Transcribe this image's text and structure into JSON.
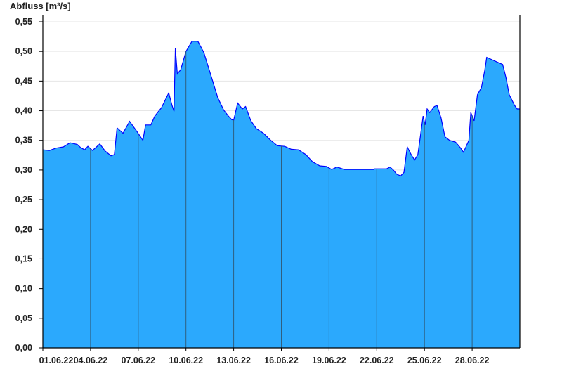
{
  "chart_data": {
    "type": "area",
    "title": "",
    "ylabel": "Abfluss [m³/s]",
    "xlabel": "",
    "xlim": [
      "2022-06-01T00:00",
      "2022-07-01T00:00"
    ],
    "ylim": [
      0,
      0.56
    ],
    "yticks": [
      "0,00",
      "0,05",
      "0,10",
      "0,15",
      "0,20",
      "0,25",
      "0,30",
      "0,35",
      "0,40",
      "0,45",
      "0,50",
      "0,55"
    ],
    "ytick_values": [
      0,
      0.05,
      0.1,
      0.15,
      0.2,
      0.25,
      0.3,
      0.35,
      0.4,
      0.45,
      0.5,
      0.55
    ],
    "xticks": [
      "01.06.22",
      "04.06.22",
      "07.06.22",
      "10.06.22",
      "13.06.22",
      "16.06.22",
      "19.06.22",
      "22.06.22",
      "25.06.22",
      "28.06.22"
    ],
    "xtick_values": [
      "2022-06-01T00:00",
      "2022-06-04T00:00",
      "2022-06-07T00:00",
      "2022-06-10T00:00",
      "2022-06-13T00:00",
      "2022-06-16T00:00",
      "2022-06-19T00:00",
      "2022-06-22T00:00",
      "2022-06-25T00:00",
      "2022-06-28T00:00"
    ],
    "grid": "horizontal",
    "legend": "none",
    "fill_color": "#2ba9fd",
    "line_color": "#0000ff",
    "separator_color": "#2f5f7f",
    "x": [
      "2022-06-01T00:00",
      "2022-06-01T10:00",
      "2022-06-01T20:00",
      "2022-06-02T07:00",
      "2022-06-02T17:00",
      "2022-06-03T04:00",
      "2022-06-03T09:00",
      "2022-06-03T15:00",
      "2022-06-03T20:00",
      "2022-06-04T03:00",
      "2022-06-04T14:00",
      "2022-06-04T22:00",
      "2022-06-05T07:00",
      "2022-06-05T12:00",
      "2022-06-05T16:00",
      "2022-06-06T01:00",
      "2022-06-06T11:00",
      "2022-06-06T22:00",
      "2022-06-07T07:00",
      "2022-06-07T11:00",
      "2022-06-07T19:00",
      "2022-06-08T01:00",
      "2022-06-08T11:00",
      "2022-06-08T22:00",
      "2022-06-09T03:00",
      "2022-06-09T06:00",
      "2022-06-09T08:00",
      "2022-06-09T11:00",
      "2022-06-09T16:00",
      "2022-06-10T00:00",
      "2022-06-10T09:00",
      "2022-06-10T18:00",
      "2022-06-11T03:00",
      "2022-06-11T13:00",
      "2022-06-12T00:00",
      "2022-06-12T09:00",
      "2022-06-12T16:00",
      "2022-06-12T21:00",
      "2022-06-13T00:00",
      "2022-06-13T06:00",
      "2022-06-13T13:00",
      "2022-06-13T18:00",
      "2022-06-14T02:00",
      "2022-06-14T10:00",
      "2022-06-14T21:00",
      "2022-06-15T08:00",
      "2022-06-15T18:00",
      "2022-06-16T05:00",
      "2022-06-16T15:00",
      "2022-06-17T02:00",
      "2022-06-17T13:00",
      "2022-06-17T23:00",
      "2022-06-18T10:00",
      "2022-06-18T20:00",
      "2022-06-19T04:00",
      "2022-06-19T12:00",
      "2022-06-19T23:00",
      "2022-06-21T19:00",
      "2022-06-21T20:00",
      "2022-06-22T15:00",
      "2022-06-22T20:00",
      "2022-06-23T01:00",
      "2022-06-23T06:00",
      "2022-06-23T12:00",
      "2022-06-23T17:00",
      "2022-06-23T22:00",
      "2022-06-24T04:00",
      "2022-06-24T09:00",
      "2022-06-24T14:00",
      "2022-06-24T17:00",
      "2022-06-24T22:00",
      "2022-06-25T01:00",
      "2022-06-25T04:00",
      "2022-06-25T08:00",
      "2022-06-25T15:00",
      "2022-06-25T19:00",
      "2022-06-26T01:00",
      "2022-06-26T07:00",
      "2022-06-26T14:00",
      "2022-06-26T23:00",
      "2022-06-27T06:00",
      "2022-06-27T11:00",
      "2022-06-27T19:00",
      "2022-06-27T22:00",
      "2022-06-28T03:00",
      "2022-06-28T08:00",
      "2022-06-28T14:00",
      "2022-06-28T19:00",
      "2022-06-28T22:00",
      "2022-06-29T06:00",
      "2022-06-29T14:00",
      "2022-06-29T22:00",
      "2022-06-30T03:00",
      "2022-06-30T08:00",
      "2022-06-30T16:00",
      "2022-06-30T20:00",
      "2022-07-01T00:00"
    ],
    "y": [
      0.334,
      0.333,
      0.337,
      0.339,
      0.346,
      0.343,
      0.338,
      0.334,
      0.34,
      0.333,
      0.344,
      0.332,
      0.324,
      0.326,
      0.371,
      0.362,
      0.382,
      0.365,
      0.35,
      0.376,
      0.376,
      0.391,
      0.405,
      0.43,
      0.409,
      0.399,
      0.506,
      0.462,
      0.469,
      0.5,
      0.517,
      0.517,
      0.498,
      0.462,
      0.422,
      0.401,
      0.391,
      0.385,
      0.384,
      0.413,
      0.403,
      0.407,
      0.383,
      0.37,
      0.362,
      0.35,
      0.341,
      0.34,
      0.335,
      0.334,
      0.326,
      0.314,
      0.307,
      0.306,
      0.301,
      0.305,
      0.301,
      0.301,
      0.302,
      0.302,
      0.305,
      0.3,
      0.293,
      0.29,
      0.296,
      0.339,
      0.326,
      0.317,
      0.326,
      0.35,
      0.391,
      0.376,
      0.403,
      0.397,
      0.407,
      0.409,
      0.388,
      0.356,
      0.35,
      0.347,
      0.338,
      0.33,
      0.35,
      0.397,
      0.383,
      0.427,
      0.439,
      0.468,
      0.49,
      0.486,
      0.482,
      0.478,
      0.456,
      0.427,
      0.409,
      0.403,
      0.403
    ]
  }
}
